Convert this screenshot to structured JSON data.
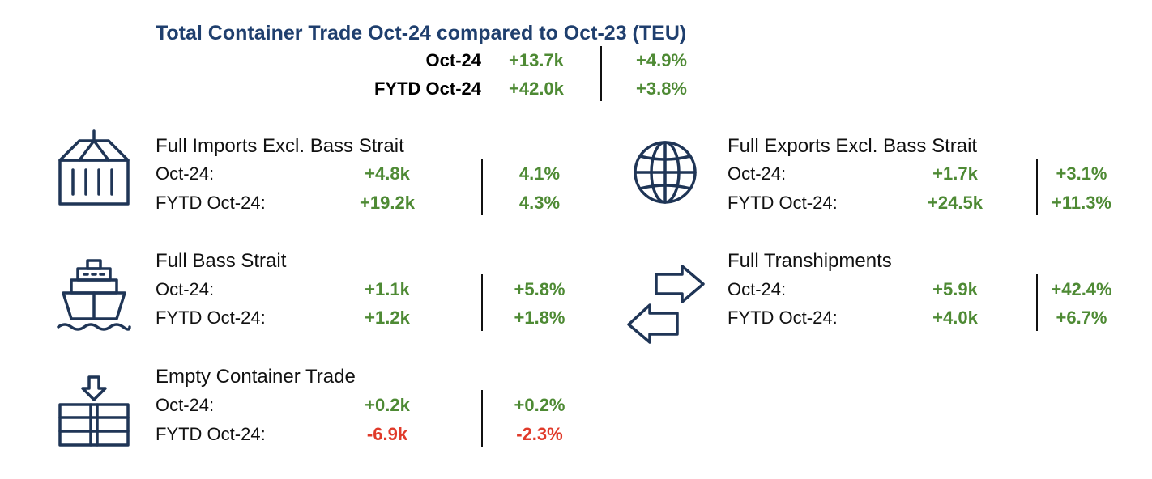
{
  "header": {
    "title": "Total Container Trade Oct-24 compared to Oct-23 (TEU)",
    "rows": [
      {
        "label": "Oct-24",
        "value": "+13.7k",
        "pct": "+4.9%"
      },
      {
        "label": "FYTD Oct-24",
        "value": "+42.0k",
        "pct": "+3.8%"
      }
    ]
  },
  "colors": {
    "title": "#1f3f6e",
    "positive": "#4e8a34",
    "negative": "#e03a2a",
    "icon": "#1f3556"
  },
  "sections": {
    "imports": {
      "icon": "container-crane-icon",
      "title": "Full Imports Excl. Bass Strait",
      "rows": [
        {
          "label": "Oct-24:",
          "value": "+4.8k",
          "pct": "4.1%"
        },
        {
          "label": "FYTD Oct-24:",
          "value": "+19.2k",
          "pct": "4.3%"
        }
      ]
    },
    "bass": {
      "icon": "ship-icon",
      "title": "Full Bass Strait",
      "rows": [
        {
          "label": "Oct-24:",
          "value": "+1.1k",
          "pct": "+5.8%"
        },
        {
          "label": "FYTD Oct-24:",
          "value": "+1.2k",
          "pct": "+1.8%"
        }
      ]
    },
    "empty": {
      "icon": "container-stack-icon",
      "title": "Empty Container Trade",
      "rows": [
        {
          "label": "Oct-24:",
          "value": "+0.2k",
          "pct": "+0.2%"
        },
        {
          "label": "FYTD Oct-24:",
          "value": "-6.9k",
          "pct": "-2.3%"
        }
      ]
    },
    "exports": {
      "icon": "globe-icon",
      "title": "Full Exports Excl. Bass Strait",
      "rows": [
        {
          "label": "Oct-24:",
          "value": "+1.7k",
          "pct": "+3.1%"
        },
        {
          "label": "FYTD Oct-24:",
          "value": "+24.5k",
          "pct": "+11.3%"
        }
      ]
    },
    "tranship": {
      "icon": "exchange-arrows-icon",
      "title": "Full Transhipments",
      "rows": [
        {
          "label": "Oct-24:",
          "value": "+5.9k",
          "pct": "+42.4%"
        },
        {
          "label": "FYTD Oct-24:",
          "value": "+4.0k",
          "pct": "+6.7%"
        }
      ]
    }
  }
}
